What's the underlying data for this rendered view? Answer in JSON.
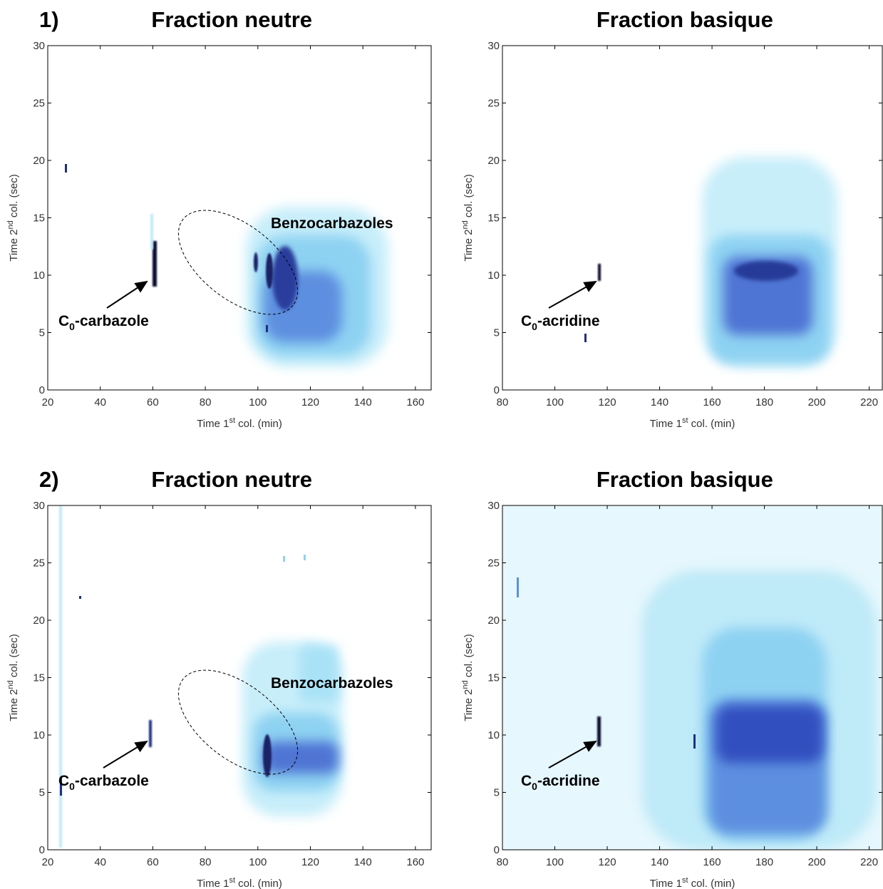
{
  "chart_data": [
    {
      "type": "heatmap",
      "panel_label": "1)",
      "title": "Fraction neutre",
      "xlabel": [
        "Time 1",
        "st",
        " col. (min)"
      ],
      "ylabel": [
        "Time 2",
        "nd",
        " col. (sec)"
      ],
      "xlim": [
        20,
        166
      ],
      "ylim": [
        0,
        30
      ],
      "xticks": [
        20,
        40,
        60,
        80,
        100,
        120,
        140,
        160
      ],
      "yticks": [
        0,
        5,
        10,
        15,
        20,
        25,
        30
      ],
      "annotations": [
        [
          "Benzocarbazoles"
        ],
        [
          "C",
          "0",
          "-carbazole"
        ]
      ]
    },
    {
      "type": "heatmap",
      "title": "Fraction basique",
      "xlabel": [
        "Time 1",
        "st",
        " col. (min)"
      ],
      "ylabel": [
        "Time 2",
        "nd",
        " col. (sec)"
      ],
      "xlim": [
        80,
        225
      ],
      "ylim": [
        0,
        30
      ],
      "xticks": [
        80,
        100,
        120,
        140,
        160,
        180,
        200,
        220
      ],
      "yticks": [
        0,
        5,
        10,
        15,
        20,
        25,
        30
      ],
      "annotations": [
        [
          "C",
          "0",
          "-acridine"
        ]
      ]
    },
    {
      "type": "heatmap",
      "panel_label": "2)",
      "title": "Fraction neutre",
      "xlabel": [
        "Time 1",
        "st",
        " col. (min)"
      ],
      "ylabel": [
        "Time 2",
        "nd",
        " col. (sec)"
      ],
      "xlim": [
        20,
        166
      ],
      "ylim": [
        0,
        30
      ],
      "xticks": [
        20,
        40,
        60,
        80,
        100,
        120,
        140,
        160
      ],
      "yticks": [
        0,
        5,
        10,
        15,
        20,
        25,
        30
      ],
      "annotations": [
        [
          "Benzocarbazoles"
        ],
        [
          "C",
          "0",
          "-carbazole"
        ]
      ]
    },
    {
      "type": "heatmap",
      "title": "Fraction basique",
      "xlabel": [
        "Time 1",
        "st",
        " col. (min)"
      ],
      "ylabel": [
        "Time 2",
        "nd",
        " col. (sec)"
      ],
      "xlim": [
        80,
        225
      ],
      "ylim": [
        0,
        30
      ],
      "xticks": [
        80,
        100,
        120,
        140,
        160,
        180,
        200,
        220
      ],
      "yticks": [
        0,
        5,
        10,
        15,
        20,
        25,
        30
      ],
      "annotations": [
        [
          "C",
          "0",
          "-acridine"
        ]
      ]
    }
  ]
}
